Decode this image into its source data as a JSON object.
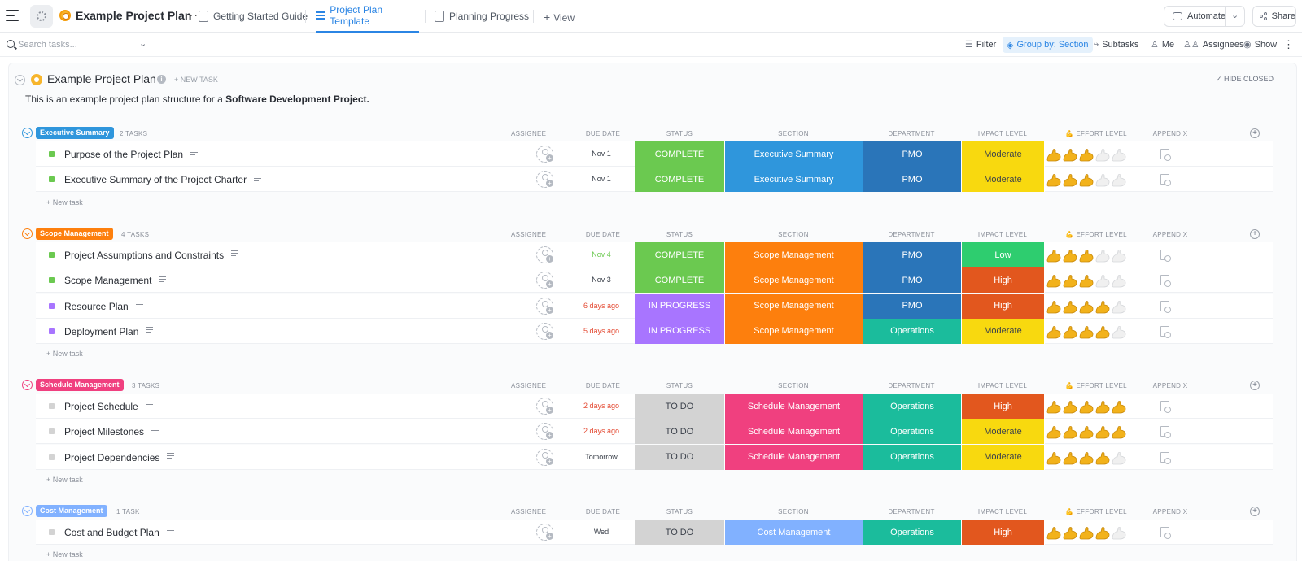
{
  "topbar": {
    "project_title": "Example Project Plan",
    "tabs": [
      {
        "label": "Getting Started Guide"
      },
      {
        "label": "Project Plan Template"
      },
      {
        "label": "Planning Progress"
      }
    ],
    "add_view": "View",
    "automate": "Automate",
    "share": "Share"
  },
  "toolbar": {
    "search_placeholder": "Search tasks...",
    "filter": "Filter",
    "group_by": "Group by: Section",
    "subtasks": "Subtasks",
    "me": "Me",
    "assignees": "Assignees",
    "show": "Show"
  },
  "list": {
    "title": "Example Project Plan",
    "new_task": "+ NEW TASK",
    "hide_closed": "HIDE CLOSED",
    "description_prefix": "This is an example project plan structure for a ",
    "description_bold": "Software Development Project."
  },
  "columns": {
    "assignee": "ASSIGNEE",
    "due_date": "DUE DATE",
    "status": "STATUS",
    "section": "SECTION",
    "department": "DEPARTMENT",
    "impact_level": "IMPACT LEVEL",
    "effort_level": "EFFORT LEVEL",
    "appendix": "APPENDIX"
  },
  "colors": {
    "complete": "#6bc950",
    "in_progress": "#a875ff",
    "to_do": "#d3d3d3",
    "pmo": "#2a75b9",
    "operations": "#1bbc9c",
    "moderate": "#f8d90f",
    "low": "#2ecd6f",
    "high": "#e2571e",
    "exec_summary": "#2f96dc",
    "scope": "#fd7f0d",
    "schedule": "#f0407f",
    "cost": "#81b1ff"
  },
  "new_task_label": "+ New task",
  "groups": [
    {
      "name": "Executive Summary",
      "count": "2 TASKS",
      "tasks": [
        {
          "name": "Purpose of the Project Plan",
          "due": "Nov 1",
          "status": "COMPLETE",
          "section": "Executive Summary",
          "department": "PMO",
          "impact": "Moderate",
          "effort": 3
        },
        {
          "name": "Executive Summary of the Project Charter",
          "due": "Nov 1",
          "status": "COMPLETE",
          "section": "Executive Summary",
          "department": "PMO",
          "impact": "Moderate",
          "effort": 3
        }
      ]
    },
    {
      "name": "Scope Management",
      "count": "4 TASKS",
      "tasks": [
        {
          "name": "Project Assumptions and Constraints",
          "due": "Nov 4",
          "status": "COMPLETE",
          "section": "Scope Management",
          "department": "PMO",
          "impact": "Low",
          "effort": 3
        },
        {
          "name": "Scope Management",
          "due": "Nov 3",
          "status": "COMPLETE",
          "section": "Scope Management",
          "department": "PMO",
          "impact": "High",
          "effort": 3
        },
        {
          "name": "Resource Plan",
          "due": "6 days ago",
          "status": "IN PROGRESS",
          "section": "Scope Management",
          "department": "PMO",
          "impact": "High",
          "effort": 4
        },
        {
          "name": "Deployment Plan",
          "due": "5 days ago",
          "status": "IN PROGRESS",
          "section": "Scope Management",
          "department": "Operations",
          "impact": "Moderate",
          "effort": 4
        }
      ]
    },
    {
      "name": "Schedule Management",
      "count": "3 TASKS",
      "tasks": [
        {
          "name": "Project Schedule",
          "due": "2 days ago",
          "status": "TO DO",
          "section": "Schedule Management",
          "department": "Operations",
          "impact": "High",
          "effort": 5
        },
        {
          "name": "Project Milestones",
          "due": "2 days ago",
          "status": "TO DO",
          "section": "Schedule Management",
          "department": "Operations",
          "impact": "Moderate",
          "effort": 5
        },
        {
          "name": "Project Dependencies",
          "due": "Tomorrow",
          "status": "TO DO",
          "section": "Schedule Management",
          "department": "Operations",
          "impact": "Moderate",
          "effort": 4
        }
      ]
    },
    {
      "name": "Cost Management",
      "count": "1 TASK",
      "tasks": [
        {
          "name": "Cost and Budget Plan",
          "due": "Wed",
          "status": "TO DO",
          "section": "Cost Management",
          "department": "Operations",
          "impact": "High",
          "effort": 4
        }
      ]
    }
  ]
}
